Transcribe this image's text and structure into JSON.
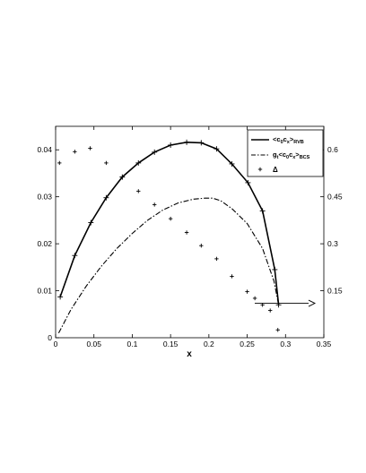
{
  "chart_data": {
    "type": "line",
    "xlabel": "x",
    "xlim": [
      0,
      0.35
    ],
    "xticks": [
      "0",
      "0.05",
      "0.1",
      "0.15",
      "0.2",
      "0.25",
      "0.3",
      "0.35"
    ],
    "ylim_left": [
      0,
      0.045
    ],
    "yticks_left": [
      "0",
      "0.01",
      "0.02",
      "0.03",
      "0.04"
    ],
    "ylim_right": [
      0,
      0.675
    ],
    "yticks_right": [
      "0.15",
      "0.3",
      "0.45",
      "0.6"
    ],
    "legend_position": "top-right",
    "grid": false,
    "arrow": {
      "label": "",
      "direction": "right",
      "meaning": "Δ values read on right axis"
    },
    "series": [
      {
        "name": "<c0cx>RVB",
        "legend_main": "<c",
        "legend_parts": [
          "0",
          "c",
          "x",
          ">",
          "RVB"
        ],
        "axis": "left",
        "style": "solid-with-plus",
        "x": [
          0.006,
          0.025,
          0.046,
          0.066,
          0.087,
          0.108,
          0.129,
          0.15,
          0.171,
          0.19,
          0.21,
          0.23,
          0.251,
          0.27,
          0.286,
          0.291
        ],
        "y": [
          0.0087,
          0.0175,
          0.0245,
          0.0298,
          0.0342,
          0.0372,
          0.0395,
          0.041,
          0.0416,
          0.0415,
          0.0402,
          0.037,
          0.033,
          0.027,
          0.0145,
          0.007
        ]
      },
      {
        "name": "gt<c0cx>BCS",
        "axis": "left",
        "style": "dash-dot",
        "x": [
          0.004,
          0.02,
          0.04,
          0.06,
          0.08,
          0.1,
          0.12,
          0.14,
          0.16,
          0.18,
          0.195,
          0.205,
          0.215,
          0.23,
          0.25,
          0.27,
          0.285,
          0.291
        ],
        "y": [
          0.001,
          0.006,
          0.011,
          0.0153,
          0.019,
          0.0222,
          0.025,
          0.0272,
          0.0287,
          0.0295,
          0.0297,
          0.0297,
          0.0292,
          0.0275,
          0.0243,
          0.019,
          0.012,
          0.007
        ]
      },
      {
        "name": "Δ",
        "axis": "right",
        "style": "markers",
        "x": [
          0.005,
          0.025,
          0.045,
          0.066,
          0.087,
          0.108,
          0.129,
          0.15,
          0.171,
          0.19,
          0.21,
          0.23,
          0.25,
          0.26,
          0.27,
          0.28,
          0.29
        ],
        "y": [
          0.558,
          0.594,
          0.605,
          0.558,
          0.513,
          0.468,
          0.425,
          0.38,
          0.336,
          0.294,
          0.252,
          0.196,
          0.147,
          0.126,
          0.105,
          0.087,
          0.025
        ]
      }
    ]
  }
}
